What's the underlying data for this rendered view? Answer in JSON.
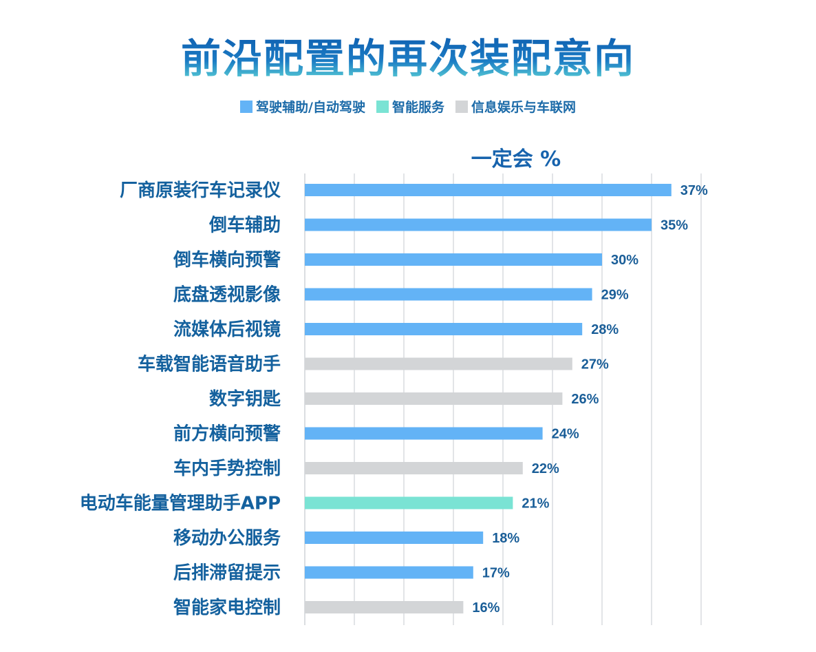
{
  "chart_data": {
    "type": "bar",
    "orientation": "horizontal",
    "title": "前沿配置的再次装配意向",
    "subtitle": "一定会 %",
    "legend": [
      {
        "name": "驾驶辅助/自动驾驶",
        "color": "#63b3f6"
      },
      {
        "name": "智能服务",
        "color": "#7ae3d4"
      },
      {
        "name": "信息娱乐与车联网",
        "color": "#d3d5d7"
      }
    ],
    "categories": [
      "厂商原装行车记录仪",
      "倒车辅助",
      "倒车横向预警",
      "底盘透视影像",
      "流媒体后视镜",
      "车载智能语音助手",
      "数字钥匙",
      "前方横向预警",
      "车内手势控制",
      "电动车能量管理助手APP",
      "移动办公服务",
      "后排滞留提示",
      "智能家电控制"
    ],
    "values": [
      37,
      35,
      30,
      29,
      28,
      27,
      26,
      24,
      22,
      21,
      18,
      17,
      16
    ],
    "value_labels": [
      "37%",
      "35%",
      "30%",
      "29%",
      "28%",
      "27%",
      "26%",
      "24%",
      "22%",
      "21%",
      "18%",
      "17%",
      "16%"
    ],
    "groups": [
      "驾驶辅助/自动驾驶",
      "驾驶辅助/自动驾驶",
      "驾驶辅助/自动驾驶",
      "驾驶辅助/自动驾驶",
      "驾驶辅助/自动驾驶",
      "信息娱乐与车联网",
      "信息娱乐与车联网",
      "驾驶辅助/自动驾驶",
      "信息娱乐与车联网",
      "智能服务",
      "驾驶辅助/自动驾驶",
      "驾驶辅助/自动驾驶",
      "信息娱乐与车联网"
    ],
    "xlim": [
      0,
      40
    ],
    "grid": true,
    "legend_position": "top-center"
  }
}
